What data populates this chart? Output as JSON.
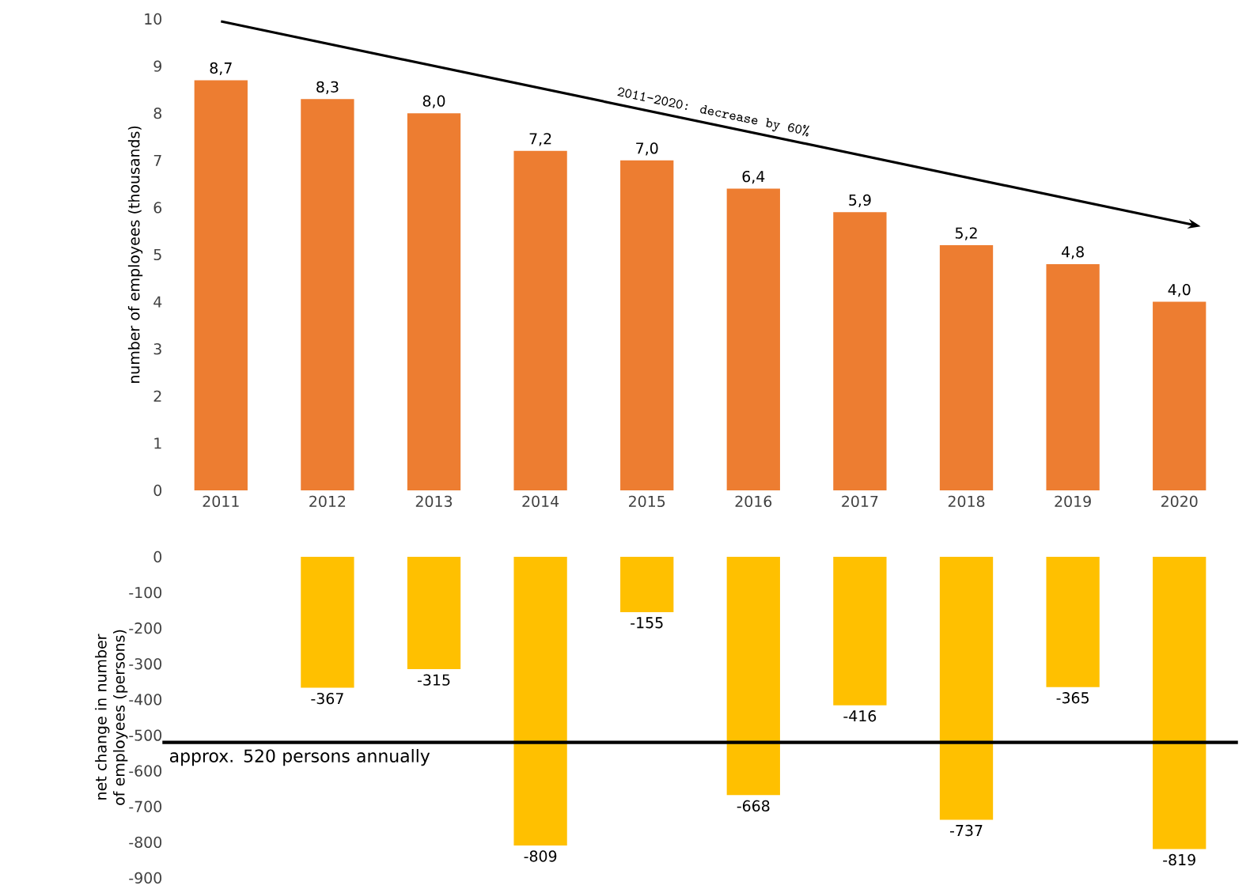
{
  "chart_data": [
    {
      "type": "bar",
      "ylabel": "number of employees (thousands)",
      "categories": [
        "2011",
        "2012",
        "2013",
        "2014",
        "2015",
        "2016",
        "2017",
        "2018",
        "2019",
        "2020"
      ],
      "values": [
        8.7,
        8.3,
        8.0,
        7.2,
        7.0,
        6.4,
        5.9,
        5.2,
        4.8,
        4.0
      ],
      "value_labels": [
        "8,7",
        "8,3",
        "8,0",
        "7,2",
        "7,0",
        "6,4",
        "5,9",
        "5,2",
        "4,8",
        "4,0"
      ],
      "color": "#ed7d31",
      "ylim": [
        0,
        10
      ],
      "yticks": [
        0,
        1,
        2,
        3,
        4,
        5,
        6,
        7,
        8,
        9,
        10
      ],
      "annotations": [
        "2011-2020: decrease by 60%"
      ]
    },
    {
      "type": "bar",
      "ylabel": "net change in number of employees (persons)",
      "categories": [
        "2011",
        "2012",
        "2013",
        "2014",
        "2015",
        "2016",
        "2017",
        "2018",
        "2019",
        "2020"
      ],
      "values": [
        null,
        -367,
        -315,
        -809,
        -155,
        -668,
        -416,
        -737,
        -365,
        -819
      ],
      "value_labels": [
        null,
        "-367",
        "-315",
        "-809",
        "-155",
        "-668",
        "-416",
        "-737",
        "-365",
        "-819"
      ],
      "color": "#ffc000",
      "ylim": [
        -900,
        0
      ],
      "yticks": [
        0,
        -100,
        -200,
        -300,
        -400,
        -500,
        -600,
        -700,
        -800,
        -900
      ],
      "tick_labels": "y",
      "ref_lines": [
        {
          "axis": "y",
          "value": -520,
          "label": "approx. 520 persons annually",
          "color": "#000000"
        }
      ]
    }
  ]
}
